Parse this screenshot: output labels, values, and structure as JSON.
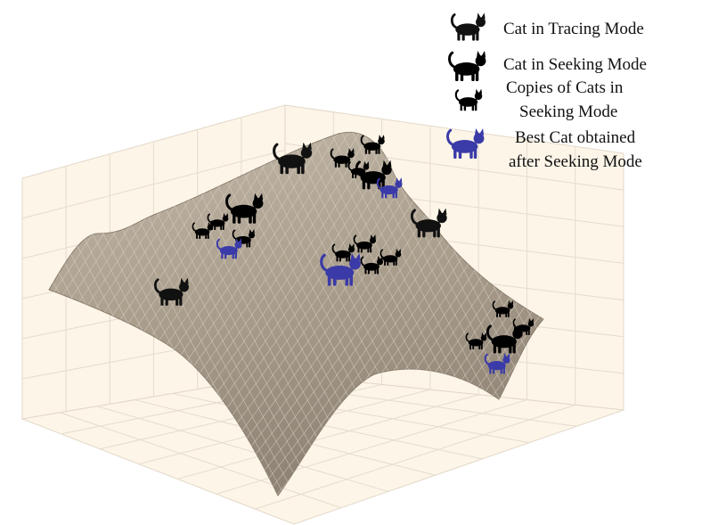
{
  "legend": {
    "items": [
      {
        "lines": [
          "Cat in Tracing Mode"
        ]
      },
      {
        "lines": [
          "Cat in Seeking Mode"
        ]
      },
      {
        "lines": [
          "Copies of Cats in",
          "Seeking Mode"
        ]
      },
      {
        "lines": [
          "Best Cat obtained",
          "after Seeking Mode"
        ]
      }
    ]
  }
}
